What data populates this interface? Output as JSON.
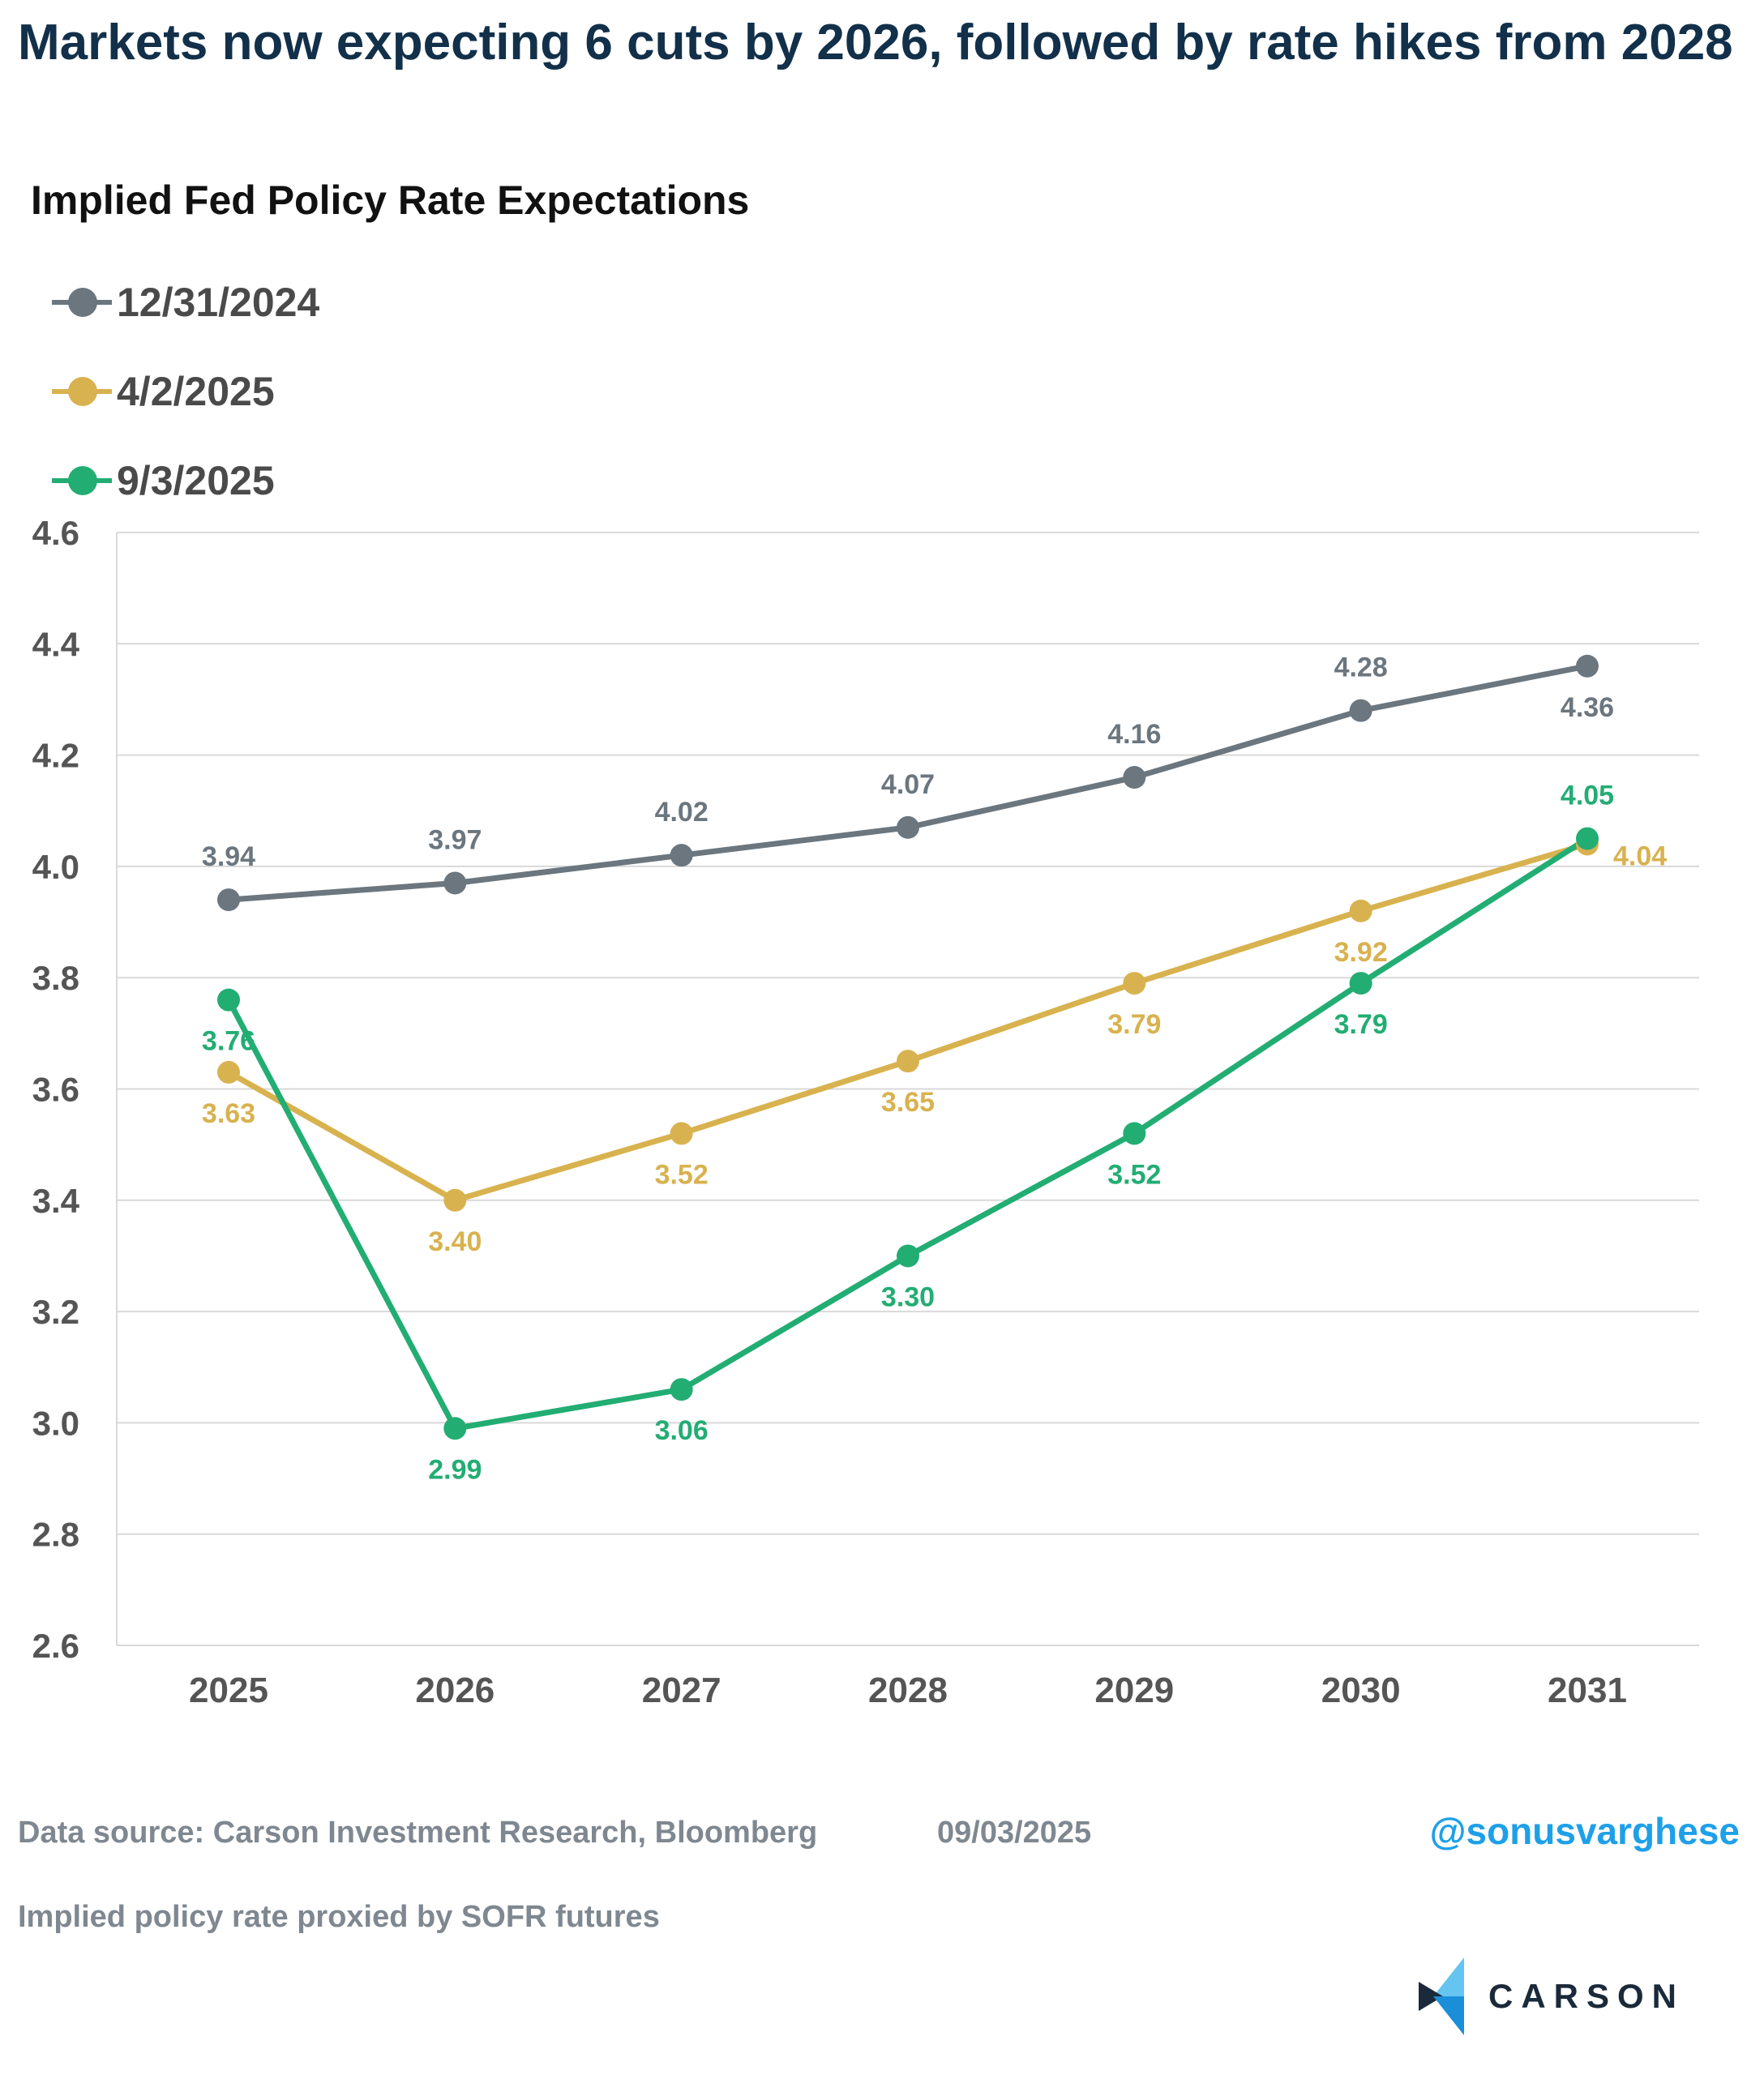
{
  "header": {
    "title": "Markets now expecting 6 cuts by 2026, followed by rate hikes from 2028",
    "subtitle": "Implied Fed Policy Rate Expectations"
  },
  "legend": [
    {
      "label": "12/31/2024",
      "color": "#6b767f"
    },
    {
      "label": "4/2/2025",
      "color": "#d8b24f"
    },
    {
      "label": "9/3/2025",
      "color": "#22ad73"
    }
  ],
  "chart_data": {
    "type": "line",
    "title": "Implied Fed Policy Rate Expectations",
    "xlabel": "",
    "ylabel": "",
    "categories": [
      "2025",
      "2026",
      "2027",
      "2028",
      "2029",
      "2030",
      "2031"
    ],
    "ylim": [
      2.6,
      4.6
    ],
    "yticks": [
      "4.6",
      "4.4",
      "4.2",
      "4.0",
      "3.8",
      "3.6",
      "3.4",
      "3.2",
      "3.0",
      "2.8",
      "2.6"
    ],
    "grid": true,
    "legend_position": "top-left",
    "series": [
      {
        "name": "12/31/2024",
        "color": "#6b767f",
        "values": [
          3.94,
          3.97,
          4.02,
          4.07,
          4.16,
          4.28,
          4.36
        ],
        "labels": [
          "3.94",
          "3.97",
          "4.02",
          "4.07",
          "4.16",
          "4.28",
          "4.36"
        ]
      },
      {
        "name": "4/2/2025",
        "color": "#d8b24f",
        "values": [
          3.63,
          3.4,
          3.52,
          3.65,
          3.79,
          3.92,
          4.04
        ],
        "labels": [
          "3.63",
          "3.40",
          "3.52",
          "3.65",
          "3.79",
          "3.92",
          "4.04"
        ]
      },
      {
        "name": "9/3/2025",
        "color": "#22ad73",
        "values": [
          3.76,
          2.99,
          3.06,
          3.3,
          3.52,
          3.79,
          4.05
        ],
        "labels": [
          "3.76",
          "2.99",
          "3.06",
          "3.30",
          "3.52",
          "3.79",
          "4.05"
        ]
      }
    ]
  },
  "footer": {
    "source": "Data source: Carson Investment Research, Bloomberg",
    "date": "09/03/2025",
    "note": "Implied policy rate proxied by SOFR futures",
    "handle": "@sonusvarghese",
    "logo": "CARSON"
  }
}
